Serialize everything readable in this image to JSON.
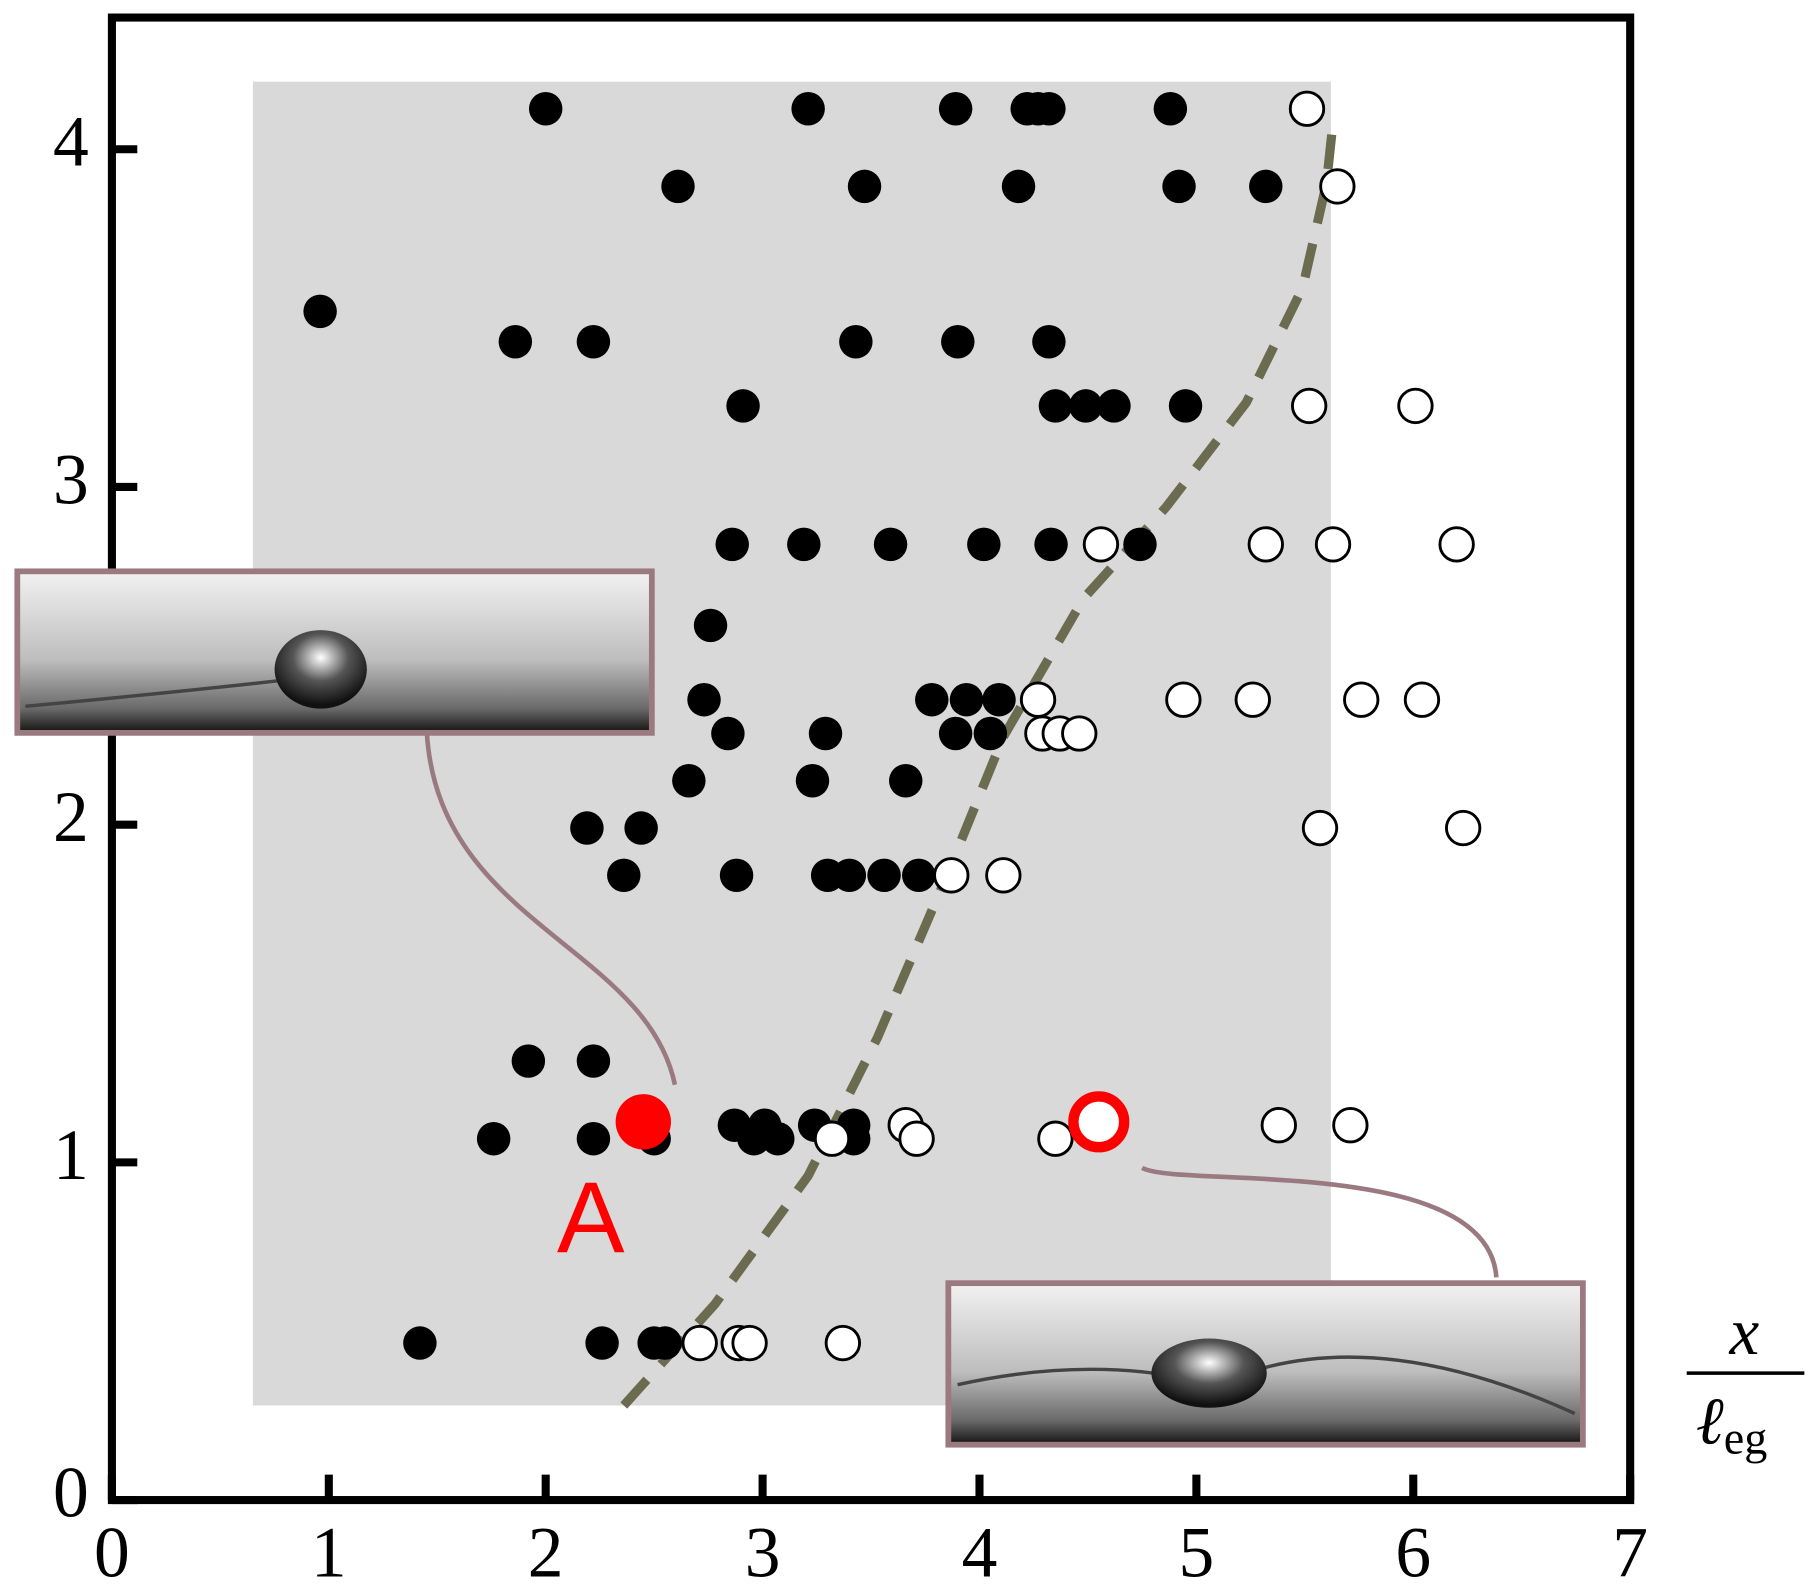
{
  "chart_data": {
    "type": "scatter",
    "xlim": [
      0,
      7
    ],
    "ylim": [
      0,
      4.39
    ],
    "xticks": [
      0,
      1,
      2,
      3,
      4,
      5,
      6,
      7
    ],
    "yticks": [
      0,
      1,
      2,
      3,
      4
    ],
    "x_label_numerator": "x",
    "x_label_denominator": "ℓ",
    "x_label_subscript": "eg",
    "annotation": "A",
    "shaded_region": {
      "color": "#d9d9d9",
      "x": [
        0.65,
        5.62
      ],
      "y": [
        0.28,
        4.2
      ]
    },
    "boundary": {
      "color": "#6b6b50",
      "x": [
        2.36,
        2.78,
        3.21,
        3.53,
        3.85,
        4.11,
        4.48,
        4.86,
        5.23,
        5.49,
        5.6,
        5.63
      ],
      "values": [
        0.28,
        0.58,
        0.96,
        1.37,
        1.85,
        2.26,
        2.67,
        2.94,
        3.25,
        3.59,
        3.9,
        4.08
      ]
    },
    "series": [
      {
        "color": "#000000",
        "filled": true,
        "x": [
          2.0,
          3.21,
          3.89,
          4.22,
          4.27,
          4.32,
          4.88,
          2.61,
          3.47,
          4.18,
          4.92,
          5.32,
          0.96,
          1.86,
          2.22,
          3.43,
          3.9,
          4.32,
          2.91,
          4.35,
          4.49,
          4.62,
          4.95,
          2.86,
          3.19,
          3.59,
          4.02,
          4.33,
          4.74,
          2.76,
          2.73,
          3.78,
          3.94,
          4.09,
          2.84,
          3.29,
          3.89,
          4.05,
          2.66,
          3.23,
          3.66,
          2.19,
          2.44,
          2.36,
          2.88,
          3.3,
          3.4,
          3.56,
          3.72,
          1.92,
          2.22,
          2.87,
          3.01,
          3.24,
          3.42,
          1.76,
          2.22,
          2.5,
          2.96,
          3.07,
          3.42,
          1.42,
          2.26,
          2.5,
          2.55
        ],
        "values": [
          4.12,
          4.12,
          4.12,
          4.12,
          4.12,
          4.12,
          4.12,
          3.89,
          3.89,
          3.89,
          3.89,
          3.89,
          3.52,
          3.43,
          3.43,
          3.43,
          3.43,
          3.43,
          3.24,
          3.24,
          3.24,
          3.24,
          3.24,
          2.83,
          2.83,
          2.83,
          2.83,
          2.83,
          2.83,
          2.59,
          2.37,
          2.37,
          2.37,
          2.37,
          2.27,
          2.27,
          2.27,
          2.27,
          2.13,
          2.13,
          2.13,
          1.99,
          1.99,
          1.85,
          1.85,
          1.85,
          1.85,
          1.85,
          1.85,
          1.3,
          1.3,
          1.11,
          1.11,
          1.11,
          1.11,
          1.07,
          1.07,
          1.07,
          1.07,
          1.07,
          1.07,
          0.465,
          0.465,
          0.465,
          0.465
        ]
      },
      {
        "color": "#000000",
        "filled": false,
        "x": [
          5.51,
          5.65,
          5.52,
          6.01,
          4.56,
          5.32,
          5.63,
          6.2,
          4.27,
          4.94,
          5.26,
          5.76,
          6.04,
          4.29,
          4.37,
          4.46,
          5.57,
          6.23,
          3.87,
          4.11,
          3.66,
          5.38,
          5.71,
          3.32,
          3.71,
          4.35,
          2.71,
          2.89,
          2.94,
          3.37
        ],
        "values": [
          4.12,
          3.89,
          3.24,
          3.24,
          2.83,
          2.83,
          2.83,
          2.83,
          2.37,
          2.37,
          2.37,
          2.37,
          2.37,
          2.27,
          2.27,
          2.27,
          1.99,
          1.99,
          1.85,
          1.85,
          1.11,
          1.11,
          1.11,
          1.07,
          1.07,
          1.07,
          0.465,
          0.465,
          0.465,
          0.465
        ]
      },
      {
        "color": "#ff0000",
        "filled": true,
        "highlight": true,
        "x": [
          2.45
        ],
        "values": [
          1.12
        ]
      },
      {
        "color": "#ff0000",
        "filled": false,
        "highlight": true,
        "x": [
          4.55
        ],
        "values": [
          1.12
        ]
      }
    ]
  }
}
